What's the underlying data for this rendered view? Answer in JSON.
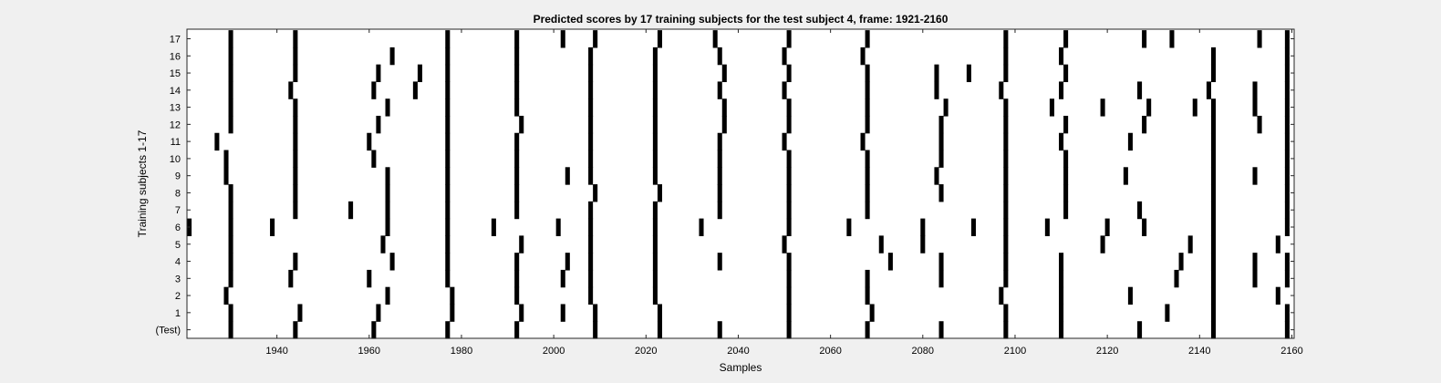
{
  "chart_data": {
    "type": "heatmap",
    "title": "Predicted scores by 17 training subjects for the test subject 4, frame: 1921-2160",
    "xlabel": "Samples",
    "ylabel": "Training subjects 1-17",
    "xlim": [
      1921,
      2160
    ],
    "xticks": [
      1940,
      1960,
      1980,
      2000,
      2020,
      2040,
      2060,
      2080,
      2100,
      2120,
      2140,
      2160
    ],
    "yticklabels": [
      "(Test)",
      "1",
      "2",
      "3",
      "4",
      "5",
      "6",
      "7",
      "8",
      "9",
      "10",
      "11",
      "12",
      "13",
      "14",
      "15",
      "16",
      "17"
    ],
    "colors": {
      "background": "#f0f0f0",
      "plot_bg": "#ffffff",
      "mark": "#000000"
    },
    "rows": [
      {
        "label": "(Test)",
        "x": [
          1930,
          1944,
          1961,
          1977,
          1992,
          2009,
          2023,
          2036,
          2051,
          2068,
          2084,
          2098,
          2110,
          2127,
          2143,
          2159
        ]
      },
      {
        "label": "1",
        "x": [
          1930,
          1945,
          1962,
          1978,
          1993,
          2002,
          2009,
          2023,
          2051,
          2069,
          2098,
          2110,
          2133,
          2143,
          2159
        ]
      },
      {
        "label": "2",
        "x": [
          1929,
          1964,
          1978,
          1992,
          2008,
          2022,
          2051,
          2068,
          2097,
          2110,
          2125,
          2143,
          2157
        ]
      },
      {
        "label": "3",
        "x": [
          1930,
          1943,
          1960,
          1977,
          1992,
          2002,
          2008,
          2022,
          2051,
          2068,
          2084,
          2098,
          2110,
          2135,
          2143,
          2152,
          2159
        ]
      },
      {
        "label": "4",
        "x": [
          1930,
          1944,
          1965,
          1977,
          1992,
          2003,
          2008,
          2022,
          2036,
          2051,
          2073,
          2084,
          2098,
          2110,
          2136,
          2143,
          2152,
          2159
        ]
      },
      {
        "label": "5",
        "x": [
          1930,
          1963,
          1977,
          1993,
          2008,
          2022,
          2050,
          2071,
          2080,
          2098,
          2119,
          2138,
          2143,
          2157
        ]
      },
      {
        "label": "6",
        "x": [
          1921,
          1930,
          1939,
          1964,
          1977,
          1987,
          2001,
          2008,
          2022,
          2032,
          2051,
          2064,
          2080,
          2091,
          2098,
          2107,
          2120,
          2128,
          2143,
          2159
        ]
      },
      {
        "label": "7",
        "x": [
          1930,
          1944,
          1956,
          1964,
          1977,
          1992,
          2008,
          2022,
          2036,
          2051,
          2068,
          2098,
          2111,
          2127,
          2143,
          2159
        ]
      },
      {
        "label": "8",
        "x": [
          1930,
          1944,
          1964,
          1977,
          1992,
          2009,
          2023,
          2036,
          2051,
          2068,
          2084,
          2098,
          2111,
          2143,
          2159
        ]
      },
      {
        "label": "9",
        "x": [
          1929,
          1944,
          1964,
          1977,
          1992,
          2003,
          2008,
          2022,
          2036,
          2051,
          2068,
          2083,
          2098,
          2111,
          2124,
          2143,
          2152,
          2159
        ]
      },
      {
        "label": "10",
        "x": [
          1929,
          1944,
          1961,
          1977,
          1992,
          2008,
          2022,
          2036,
          2051,
          2068,
          2084,
          2098,
          2111,
          2143,
          2159
        ]
      },
      {
        "label": "11",
        "x": [
          1927,
          1944,
          1960,
          1977,
          1992,
          2008,
          2022,
          2036,
          2050,
          2067,
          2084,
          2098,
          2110,
          2125,
          2143,
          2159
        ]
      },
      {
        "label": "12",
        "x": [
          1930,
          1944,
          1962,
          1977,
          1993,
          2008,
          2022,
          2037,
          2051,
          2068,
          2084,
          2098,
          2111,
          2128,
          2143,
          2153,
          2159
        ]
      },
      {
        "label": "13",
        "x": [
          1930,
          1944,
          1964,
          1977,
          1992,
          2008,
          2022,
          2037,
          2051,
          2068,
          2085,
          2098,
          2108,
          2119,
          2129,
          2139,
          2143,
          2152,
          2159
        ]
      },
      {
        "label": "14",
        "x": [
          1930,
          1943,
          1961,
          1970,
          1977,
          1992,
          2008,
          2022,
          2036,
          2050,
          2068,
          2083,
          2097,
          2110,
          2127,
          2142,
          2152,
          2159
        ]
      },
      {
        "label": "15",
        "x": [
          1930,
          1944,
          1962,
          1971,
          1977,
          1992,
          2008,
          2022,
          2037,
          2051,
          2068,
          2083,
          2090,
          2098,
          2111,
          2143,
          2159
        ]
      },
      {
        "label": "16",
        "x": [
          1930,
          1944,
          1965,
          1977,
          1992,
          2008,
          2022,
          2036,
          2050,
          2067,
          2098,
          2110,
          2143,
          2159
        ]
      },
      {
        "label": "17",
        "x": [
          1930,
          1944,
          1977,
          1992,
          2002,
          2009,
          2023,
          2035,
          2051,
          2068,
          2098,
          2111,
          2128,
          2134,
          2153,
          2159
        ]
      }
    ]
  }
}
